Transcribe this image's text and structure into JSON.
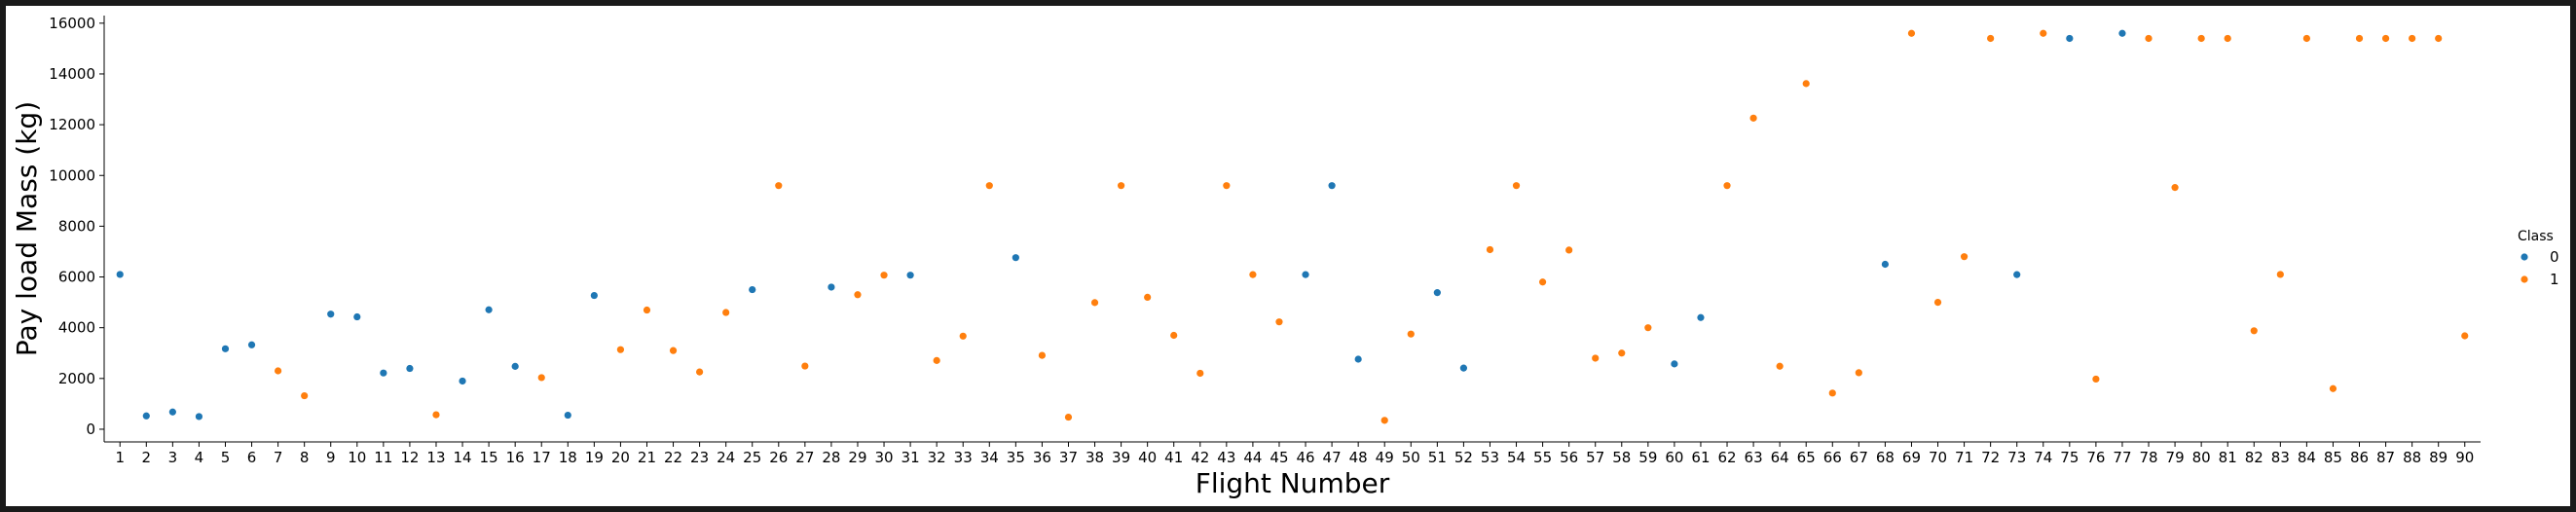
{
  "chart_data": {
    "type": "scatter",
    "title": "",
    "xlabel": "Flight Number",
    "ylabel": "Pay load Mass (kg)",
    "x": [
      1,
      2,
      3,
      4,
      5,
      6,
      7,
      8,
      9,
      10,
      11,
      12,
      13,
      14,
      15,
      16,
      17,
      18,
      19,
      20,
      21,
      22,
      23,
      24,
      25,
      26,
      27,
      28,
      29,
      30,
      31,
      32,
      33,
      34,
      35,
      36,
      37,
      38,
      39,
      40,
      41,
      42,
      43,
      44,
      45,
      46,
      47,
      48,
      49,
      50,
      51,
      52,
      53,
      54,
      55,
      56,
      57,
      58,
      59,
      60,
      61,
      62,
      63,
      64,
      65,
      66,
      67,
      68,
      69,
      70,
      71,
      72,
      73,
      74,
      75,
      76,
      77,
      78,
      79,
      80,
      81,
      82,
      83,
      84,
      85,
      86,
      87,
      88,
      89,
      90
    ],
    "y": [
      6100,
      525,
      680,
      500,
      3170,
      3325,
      2300,
      1320,
      4535,
      4428,
      2216,
      2395,
      570,
      1898,
      4707,
      2477,
      2034,
      553,
      5271,
      3136,
      4696,
      3100,
      2257,
      4600,
      5500,
      9600,
      2490,
      5600,
      5300,
      6070,
      6070,
      2708,
      3669,
      9600,
      6761,
      2910,
      475,
      4990,
      9600,
      5200,
      3700,
      2205,
      9600,
      6092,
      4230,
      6092,
      9600,
      2760,
      350,
      3750,
      5383,
      2410,
      7076,
      9600,
      5800,
      7060,
      2800,
      3000,
      4000,
      2573,
      4400,
      9600,
      12259,
      2482,
      13620,
      1425,
      2227,
      6500,
      15600,
      5000,
      6800,
      15400,
      6092,
      15600,
      15400,
      1977,
      15600,
      15400,
      9525,
      15400,
      15400,
      3880,
      6100,
      15400,
      1600,
      15400,
      15400,
      15400,
      15400,
      3681
    ],
    "class": [
      0,
      0,
      0,
      0,
      0,
      0,
      1,
      1,
      0,
      0,
      0,
      0,
      1,
      0,
      0,
      0,
      1,
      0,
      0,
      1,
      1,
      1,
      1,
      1,
      0,
      1,
      1,
      0,
      1,
      1,
      0,
      1,
      1,
      1,
      0,
      1,
      1,
      1,
      1,
      1,
      1,
      1,
      1,
      1,
      1,
      0,
      0,
      0,
      1,
      1,
      0,
      0,
      1,
      1,
      1,
      1,
      1,
      1,
      1,
      0,
      0,
      1,
      1,
      1,
      1,
      1,
      1,
      0,
      1,
      1,
      1,
      1,
      0,
      1,
      0,
      1,
      0,
      1,
      1,
      1,
      1,
      1,
      1,
      1,
      1,
      1,
      1,
      1,
      1,
      1
    ],
    "xlim": [
      0.4,
      90.6
    ],
    "ylim": [
      -500,
      16300
    ],
    "yticks": [
      0,
      2000,
      4000,
      6000,
      8000,
      10000,
      12000,
      14000,
      16000
    ],
    "legend": {
      "title": "Class",
      "placement": "right",
      "entries": [
        {
          "label": "0",
          "color": "#1f77b4"
        },
        {
          "label": "1",
          "color": "#ff7f0e"
        }
      ]
    },
    "grid": false
  }
}
